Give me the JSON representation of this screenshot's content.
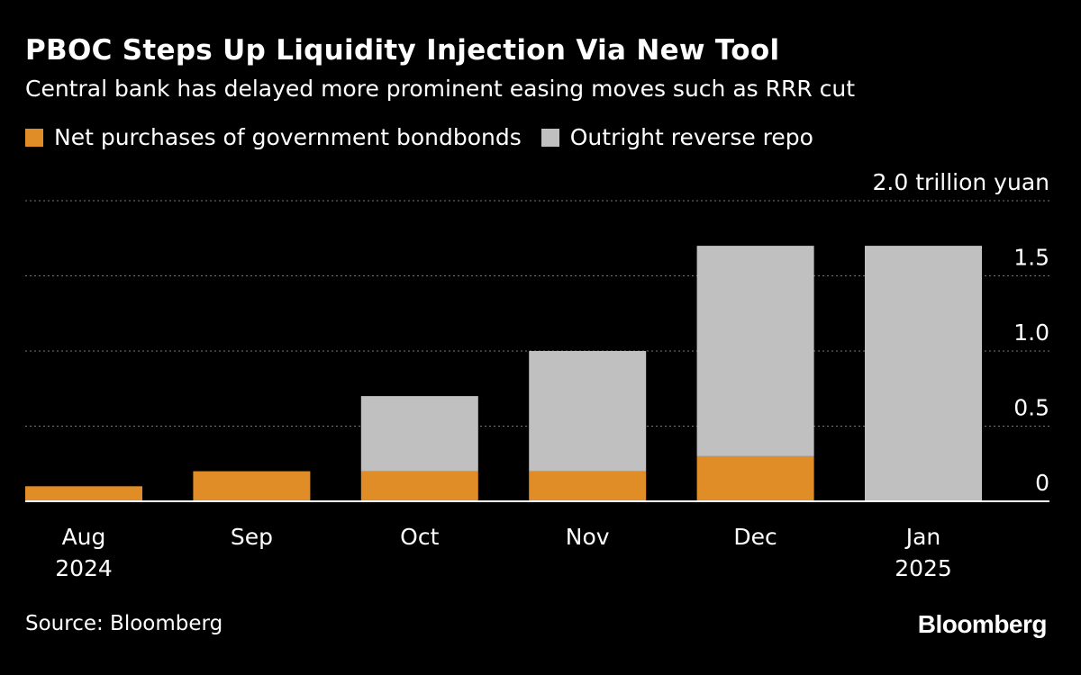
{
  "header": {
    "title": "PBOC Steps Up Liquidity Injection Via New Tool",
    "subtitle": "Central bank has delayed more prominent easing moves such as RRR cut"
  },
  "legend": {
    "items": [
      {
        "label": "Net purchases of government bondbonds",
        "color": "#e08c27"
      },
      {
        "label": "Outright reverse repo",
        "color": "#c0c0c0"
      }
    ]
  },
  "footer": {
    "source": "Source: Bloomberg",
    "logo": "Bloomberg"
  },
  "chart_data": {
    "type": "bar",
    "stacked": true,
    "categories": [
      "Aug",
      "Sep",
      "Oct",
      "Nov",
      "Dec",
      "Jan"
    ],
    "category_sublabels": [
      "2024",
      "",
      "",
      "",
      "",
      "2025"
    ],
    "series": [
      {
        "name": "Net purchases of government bondbonds",
        "color": "#e08c27",
        "values": [
          0.1,
          0.2,
          0.2,
          0.2,
          0.3,
          0
        ]
      },
      {
        "name": "Outright reverse repo",
        "color": "#c0c0c0",
        "values": [
          0,
          0,
          0.5,
          0.8,
          1.4,
          1.7
        ]
      }
    ],
    "ylim": [
      0,
      2.0
    ],
    "y_ticks": [
      0,
      0.5,
      1.0,
      1.5,
      2.0
    ],
    "y_tick_labels": [
      "0",
      "0.5",
      "1.0",
      "1.5",
      "2.0 trillion yuan"
    ],
    "grid": true,
    "y_axis_position": "right",
    "legend_position": "top-left"
  }
}
